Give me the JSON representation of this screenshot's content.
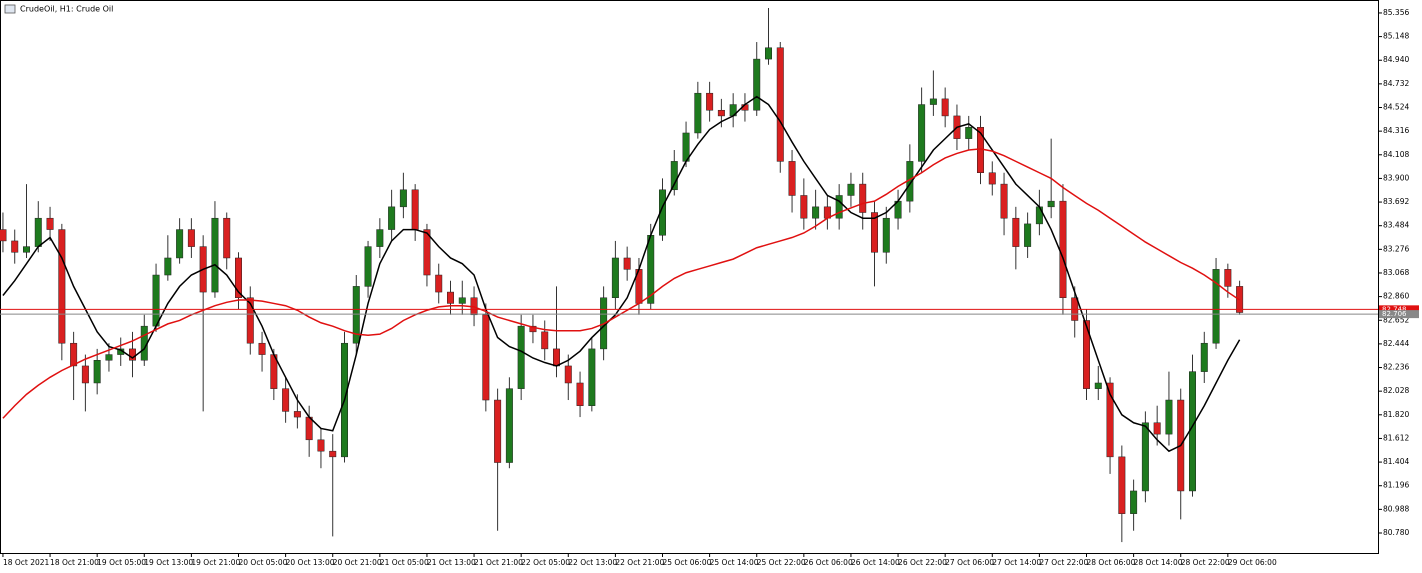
{
  "chart_data": {
    "type": "candlestick",
    "title": "CrudeOil, H1:  Crude Oil",
    "up_color": "#1e7a1e",
    "down_color": "#d92020",
    "x": [
      0,
      2,
      4,
      6,
      8,
      10,
      12,
      14,
      16,
      18,
      20,
      22,
      24,
      26,
      28,
      30,
      32,
      34,
      36,
      38,
      40,
      42,
      44,
      46,
      48,
      50,
      52,
      54,
      56,
      58,
      60,
      62,
      64,
      66,
      68,
      70,
      72,
      74,
      76,
      78,
      80,
      82,
      84,
      86,
      88,
      90,
      92,
      94,
      96,
      98,
      100,
      102,
      104,
      106,
      108,
      110,
      112,
      114,
      116,
      118,
      120,
      122,
      124,
      126,
      128,
      130,
      132,
      134,
      136,
      138,
      140,
      142,
      144,
      146,
      148,
      150,
      152,
      154,
      156,
      158,
      160,
      162,
      164,
      166,
      168,
      170,
      172,
      174,
      176,
      178,
      180,
      182,
      184,
      186,
      188,
      190,
      192,
      194,
      196,
      198,
      200,
      202,
      204,
      206,
      208,
      210
    ],
    "open": [
      83.45,
      83.35,
      83.25,
      83.3,
      83.55,
      83.45,
      82.45,
      82.25,
      82.1,
      82.3,
      82.35,
      82.4,
      82.3,
      82.6,
      83.05,
      83.2,
      83.45,
      83.3,
      82.9,
      83.55,
      83.2,
      82.85,
      82.45,
      82.35,
      82.05,
      81.85,
      81.8,
      81.6,
      81.5,
      81.45,
      82.45,
      82.95,
      83.3,
      83.45,
      83.65,
      83.8,
      83.45,
      83.05,
      82.9,
      82.8,
      82.85,
      82.7,
      81.95,
      81.4,
      82.05,
      82.6,
      82.55,
      82.4,
      82.25,
      82.1,
      81.9,
      82.4,
      82.85,
      83.2,
      83.1,
      82.8,
      83.4,
      83.8,
      84.05,
      84.3,
      84.65,
      84.5,
      84.45,
      84.55,
      84.5,
      84.95,
      85.05,
      84.05,
      83.75,
      83.55,
      83.65,
      83.55,
      83.75,
      83.85,
      83.6,
      83.25,
      83.55,
      83.7,
      84.05,
      84.55,
      84.6,
      84.45,
      84.25,
      84.35,
      83.95,
      83.85,
      83.55,
      83.3,
      83.5,
      83.65,
      83.7,
      82.85,
      82.65,
      82.05,
      82.1,
      81.45,
      80.95,
      81.15,
      81.75,
      81.65,
      81.95,
      81.15,
      82.2,
      82.45,
      83.1,
      82.95
    ],
    "high": [
      83.6,
      83.45,
      83.85,
      83.7,
      83.65,
      83.5,
      82.55,
      82.35,
      82.4,
      82.45,
      82.5,
      82.55,
      82.7,
      83.15,
      83.4,
      83.55,
      83.55,
      83.4,
      83.7,
      83.6,
      83.25,
      82.95,
      82.55,
      82.4,
      82.15,
      82.0,
      81.9,
      81.7,
      81.65,
      82.55,
      83.05,
      83.35,
      83.55,
      83.8,
      83.95,
      83.85,
      83.5,
      83.15,
      83.0,
      83.0,
      82.95,
      82.8,
      82.05,
      82.15,
      82.7,
      82.7,
      82.65,
      82.95,
      82.35,
      82.2,
      82.5,
      82.95,
      83.35,
      83.3,
      83.2,
      83.5,
      83.9,
      84.15,
      84.4,
      84.75,
      84.75,
      84.6,
      84.65,
      84.65,
      85.1,
      85.4,
      85.1,
      84.15,
      83.9,
      83.8,
      83.75,
      83.85,
      83.95,
      83.95,
      83.7,
      83.65,
      83.8,
      84.2,
      84.7,
      84.85,
      84.7,
      84.55,
      84.45,
      84.45,
      84.05,
      83.95,
      83.65,
      83.6,
      83.8,
      84.25,
      83.85,
      82.95,
      82.75,
      82.25,
      82.15,
      81.55,
      81.25,
      81.85,
      81.9,
      82.2,
      82.05,
      82.35,
      82.55,
      83.2,
      83.15,
      83.0
    ],
    "low": [
      83.25,
      83.15,
      83.2,
      83.25,
      83.35,
      82.3,
      81.95,
      81.85,
      82.0,
      82.2,
      82.25,
      82.15,
      82.25,
      82.55,
      83.0,
      83.15,
      83.2,
      81.85,
      82.85,
      83.1,
      82.75,
      82.35,
      82.2,
      81.95,
      81.75,
      81.7,
      81.45,
      81.35,
      80.75,
      81.4,
      82.35,
      82.85,
      83.2,
      83.35,
      83.55,
      83.35,
      82.95,
      82.8,
      82.7,
      82.7,
      82.6,
      81.85,
      80.8,
      81.35,
      81.95,
      82.45,
      82.3,
      82.15,
      81.95,
      81.8,
      81.85,
      82.3,
      82.75,
      83.0,
      82.7,
      82.75,
      83.35,
      83.75,
      84.0,
      84.25,
      84.4,
      84.35,
      84.35,
      84.4,
      84.45,
      84.9,
      83.95,
      83.6,
      83.45,
      83.45,
      83.45,
      83.45,
      83.65,
      83.45,
      82.95,
      83.15,
      83.45,
      83.6,
      83.95,
      84.45,
      84.35,
      84.15,
      84.15,
      83.85,
      83.75,
      83.4,
      83.1,
      83.2,
      83.4,
      83.55,
      82.7,
      82.5,
      81.95,
      81.95,
      81.3,
      80.7,
      80.8,
      81.05,
      81.55,
      81.55,
      80.9,
      81.1,
      82.1,
      82.4,
      82.85,
      82.7
    ],
    "close": [
      83.35,
      83.25,
      83.3,
      83.55,
      83.45,
      82.45,
      82.25,
      82.1,
      82.3,
      82.35,
      82.4,
      82.3,
      82.6,
      83.05,
      83.2,
      83.45,
      83.3,
      82.9,
      83.55,
      83.2,
      82.85,
      82.45,
      82.35,
      82.05,
      81.85,
      81.8,
      81.6,
      81.5,
      81.45,
      82.45,
      82.95,
      83.3,
      83.45,
      83.65,
      83.8,
      83.45,
      83.05,
      82.9,
      82.8,
      82.85,
      82.7,
      81.95,
      81.4,
      82.05,
      82.6,
      82.55,
      82.4,
      82.25,
      82.1,
      81.9,
      82.4,
      82.85,
      83.2,
      83.1,
      82.8,
      83.4,
      83.8,
      84.05,
      84.3,
      84.65,
      84.5,
      84.45,
      84.55,
      84.5,
      84.95,
      85.05,
      84.05,
      83.75,
      83.55,
      83.65,
      83.55,
      83.75,
      83.85,
      83.6,
      83.25,
      83.55,
      83.7,
      84.05,
      84.55,
      84.6,
      84.45,
      84.25,
      84.35,
      83.95,
      83.85,
      83.55,
      83.3,
      83.5,
      83.65,
      83.7,
      82.85,
      82.65,
      82.05,
      82.1,
      81.45,
      80.95,
      81.15,
      81.75,
      81.65,
      81.95,
      81.15,
      82.2,
      82.45,
      83.1,
      82.95,
      82.72
    ],
    "series": [
      {
        "color": "#000000",
        "values": [
          82.87,
          83.0,
          83.15,
          83.3,
          83.38,
          83.2,
          82.95,
          82.75,
          82.55,
          82.42,
          82.39,
          82.32,
          82.4,
          82.6,
          82.8,
          82.95,
          83.05,
          83.1,
          83.14,
          83.05,
          82.9,
          82.8,
          82.6,
          82.35,
          82.15,
          81.95,
          81.8,
          81.7,
          81.68,
          81.95,
          82.35,
          82.8,
          83.15,
          83.35,
          83.45,
          83.45,
          83.42,
          83.3,
          83.2,
          83.15,
          83.05,
          82.75,
          82.5,
          82.42,
          82.38,
          82.32,
          82.28,
          82.25,
          82.3,
          82.38,
          82.5,
          82.6,
          82.7,
          82.85,
          83.1,
          83.4,
          83.65,
          83.85,
          84.05,
          84.2,
          84.33,
          84.4,
          84.45,
          84.55,
          84.62,
          84.55,
          84.4,
          84.22,
          84.05,
          83.9,
          83.75,
          83.7,
          83.6,
          83.55,
          83.55,
          83.6,
          83.7,
          83.85,
          84.0,
          84.15,
          84.25,
          84.35,
          84.38,
          84.3,
          84.15,
          84.0,
          83.85,
          83.75,
          83.65,
          83.45,
          83.2,
          82.9,
          82.6,
          82.3,
          82.0,
          81.82,
          81.75,
          81.72,
          81.6,
          81.5,
          81.55,
          81.72,
          81.9,
          82.1,
          82.3,
          82.48
        ]
      },
      {
        "color": "#e01010",
        "values": [
          81.79,
          81.9,
          82.0,
          82.08,
          82.15,
          82.21,
          82.26,
          82.31,
          82.35,
          82.39,
          82.43,
          82.47,
          82.52,
          82.57,
          82.62,
          82.65,
          82.7,
          82.74,
          82.78,
          82.81,
          82.83,
          82.83,
          82.82,
          82.8,
          82.78,
          82.74,
          82.68,
          82.63,
          82.6,
          82.56,
          82.53,
          82.52,
          82.53,
          82.58,
          82.65,
          82.7,
          82.74,
          82.77,
          82.78,
          82.78,
          82.77,
          82.73,
          82.68,
          82.65,
          82.62,
          82.59,
          82.57,
          82.56,
          82.56,
          82.56,
          82.58,
          82.62,
          82.68,
          82.74,
          82.8,
          82.87,
          82.95,
          83.02,
          83.07,
          83.1,
          83.13,
          83.16,
          83.19,
          83.24,
          83.29,
          83.32,
          83.35,
          83.38,
          83.42,
          83.48,
          83.55,
          83.6,
          83.64,
          83.68,
          83.7,
          83.76,
          83.83,
          83.89,
          83.95,
          84.02,
          84.08,
          84.12,
          84.15,
          84.16,
          84.14,
          84.1,
          84.05,
          84.0,
          83.95,
          83.9,
          83.82,
          83.75,
          83.68,
          83.62,
          83.55,
          83.48,
          83.41,
          83.34,
          83.28,
          83.22,
          83.16,
          83.11,
          83.05,
          82.98,
          82.9,
          82.83
        ]
      }
    ],
    "price_lines": [
      {
        "value": 82.748,
        "color": "#e01010"
      },
      {
        "value": 82.706,
        "color": "#888888"
      }
    ],
    "xlim": [
      -0.5,
      233.5
    ],
    "ylim": [
      80.604,
      85.47
    ],
    "xticks": [
      {
        "value": 0,
        "label": "18 Oct 2021"
      },
      {
        "value": 8,
        "label": "18 Oct 21:00"
      },
      {
        "value": 16,
        "label": "19 Oct 05:00"
      },
      {
        "value": 24,
        "label": "19 Oct 13:00"
      },
      {
        "value": 32,
        "label": "19 Oct 21:00"
      },
      {
        "value": 40,
        "label": "20 Oct 05:00"
      },
      {
        "value": 48,
        "label": "20 Oct 13:00"
      },
      {
        "value": 56,
        "label": "20 Oct 21:00"
      },
      {
        "value": 64,
        "label": "21 Oct 05:00"
      },
      {
        "value": 72,
        "label": "21 Oct 13:00"
      },
      {
        "value": 80,
        "label": "21 Oct 21:00"
      },
      {
        "value": 88,
        "label": "22 Oct 05:00"
      },
      {
        "value": 96,
        "label": "22 Oct 13:00"
      },
      {
        "value": 104,
        "label": "22 Oct 21:00"
      },
      {
        "value": 112,
        "label": "25 Oct 06:00"
      },
      {
        "value": 120,
        "label": "25 Oct 14:00"
      },
      {
        "value": 128,
        "label": "25 Oct 22:00"
      },
      {
        "value": 136,
        "label": "26 Oct 06:00"
      },
      {
        "value": 144,
        "label": "26 Oct 14:00"
      },
      {
        "value": 152,
        "label": "26 Oct 22:00"
      },
      {
        "value": 160,
        "label": "27 Oct 06:00"
      },
      {
        "value": 168,
        "label": "27 Oct 14:00"
      },
      {
        "value": 176,
        "label": "27 Oct 22:00"
      },
      {
        "value": 184,
        "label": "28 Oct 06:00"
      },
      {
        "value": 192,
        "label": "28 Oct 14:00"
      },
      {
        "value": 200,
        "label": "28 Oct 22:00"
      },
      {
        "value": 208,
        "label": "29 Oct 06:00"
      }
    ],
    "yticks": [
      85.356,
      85.148,
      {
        "value": 84.94,
        "label": "84.940"
      },
      84.732,
      84.524,
      84.316,
      84.108,
      {
        "value": 83.9,
        "label": "83.900"
      },
      83.692,
      83.484,
      83.276,
      83.068,
      {
        "value": 82.86,
        "label": "82.860"
      },
      82.652,
      82.444,
      82.236,
      82.028,
      {
        "value": 81.82,
        "label": "81.820"
      },
      81.612,
      81.404,
      81.196,
      80.988,
      {
        "value": 80.78,
        "label": "80.780"
      }
    ]
  }
}
